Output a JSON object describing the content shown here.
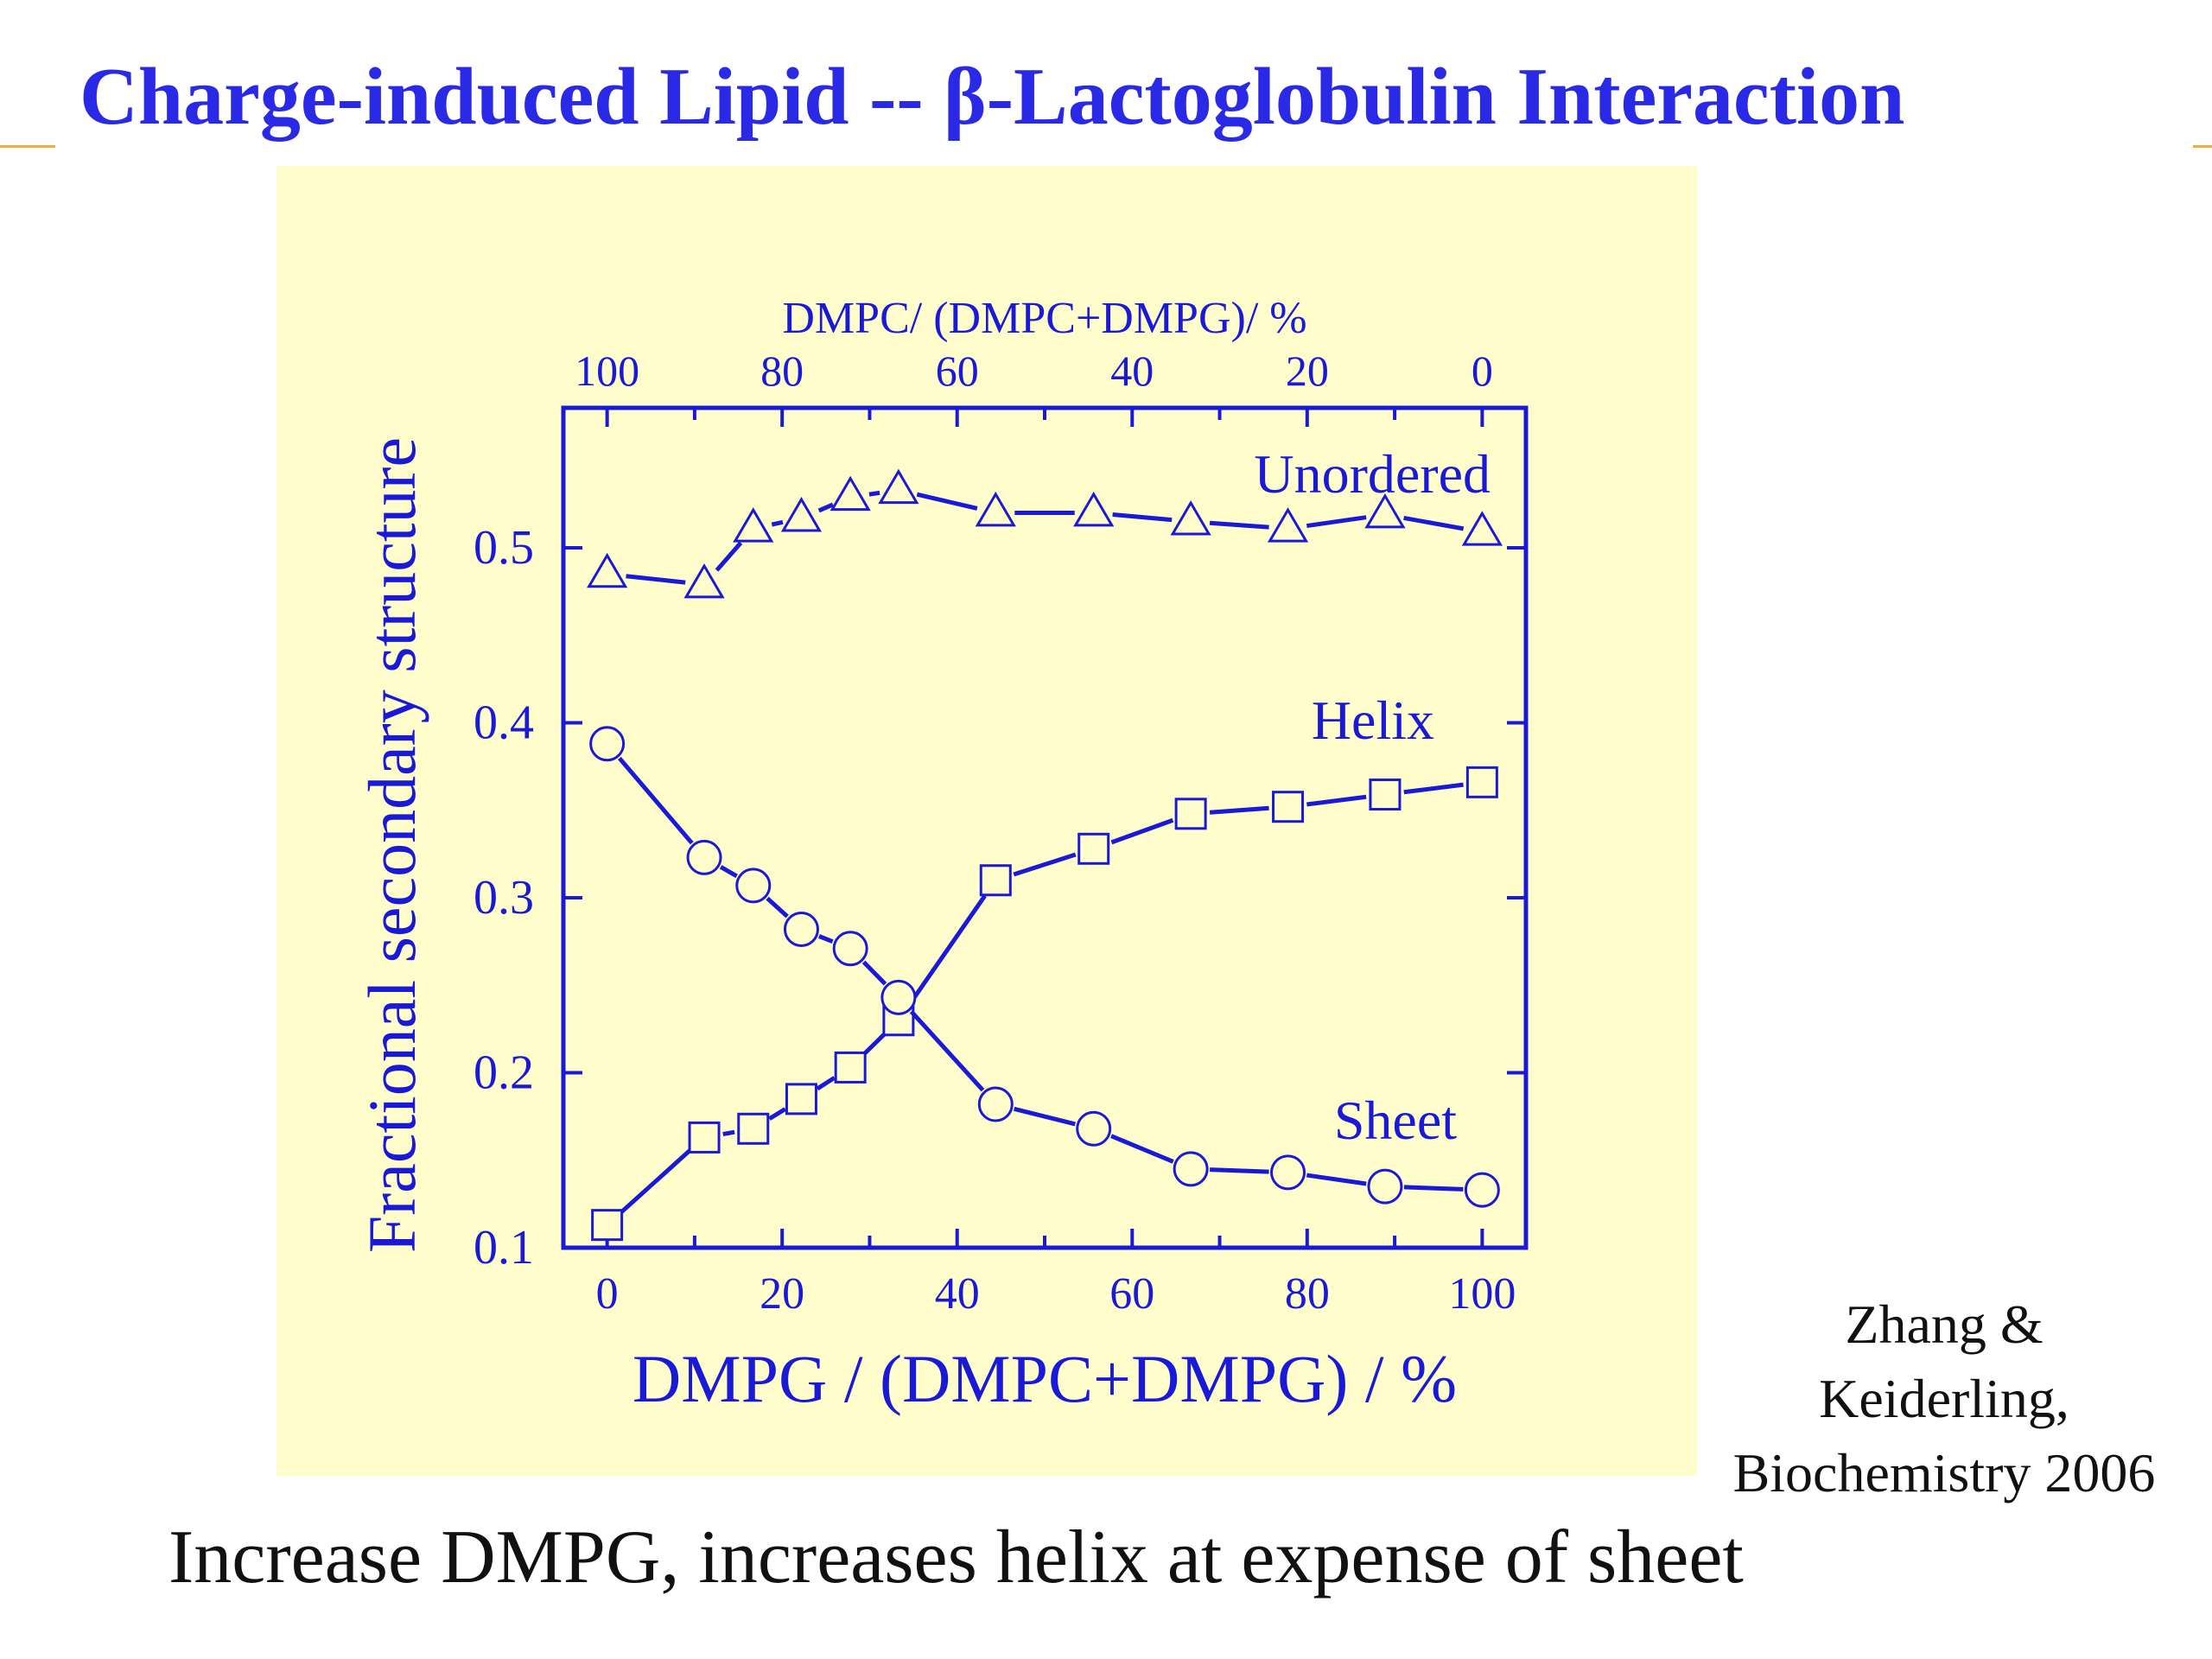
{
  "slide": {
    "title": "Charge-induced Lipid -- β-Lactoglobulin Interaction",
    "citation": [
      "Zhang &",
      "Keiderling,",
      "Biochemistry 2006"
    ],
    "caption": "Increase  DMPG, increases helix at expense of sheet"
  },
  "colors": {
    "title": "#2a2ae6",
    "chart_ink": "#1a1ad6",
    "panel_background": "#fffdcc",
    "rule": "#e8b040"
  },
  "chart_data": {
    "type": "line",
    "xlabel": "DMPG / (DMPC+DMPG) / %",
    "ylabel": "Fractional secondary structure",
    "top_xlabel": "DMPC/ (DMPC+DMPG)/ %",
    "xlim": [
      -5,
      105
    ],
    "ylim": [
      0.1,
      0.58
    ],
    "xticks": [
      0,
      20,
      40,
      60,
      80,
      100
    ],
    "top_xticks": [
      100,
      80,
      60,
      40,
      20,
      0
    ],
    "yticks": [
      0.1,
      0.2,
      0.3,
      0.4,
      0.5
    ],
    "yticklabels": [
      "0.1",
      "0.2",
      "0.3",
      "0.4",
      "0.5"
    ],
    "x": [
      0,
      11.1,
      16.7,
      22.2,
      27.8,
      33.3,
      44.4,
      55.6,
      66.7,
      77.8,
      88.9,
      100
    ],
    "series": [
      {
        "name": "Unordered",
        "marker": "triangle",
        "values": [
          0.485,
          0.479,
          0.511,
          0.517,
          0.529,
          0.533,
          0.52,
          0.52,
          0.515,
          0.511,
          0.519,
          0.509
        ]
      },
      {
        "name": "Helix",
        "marker": "square",
        "values": [
          0.113,
          0.163,
          0.168,
          0.185,
          0.203,
          0.23,
          0.31,
          0.328,
          0.348,
          0.352,
          0.359,
          0.366
        ]
      },
      {
        "name": "Sheet",
        "marker": "circle",
        "values": [
          0.388,
          0.323,
          0.307,
          0.282,
          0.271,
          0.243,
          0.182,
          0.168,
          0.145,
          0.143,
          0.135,
          0.133
        ]
      }
    ],
    "grid": false,
    "legend": "inline labels"
  }
}
